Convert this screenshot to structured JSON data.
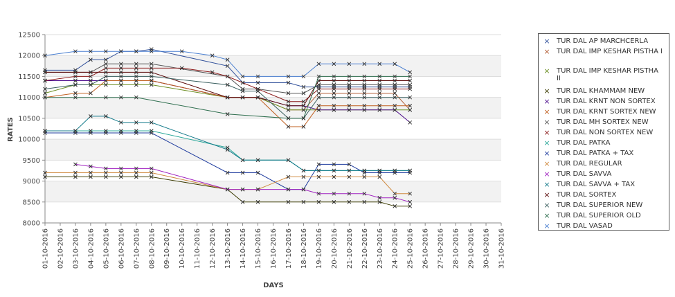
{
  "chart_data": {
    "type": "line",
    "xlabel": "DAYS",
    "ylabel": "RATES",
    "ylim": [
      8000,
      12500
    ],
    "yticks": [
      8000,
      8500,
      9000,
      9500,
      10000,
      10500,
      11000,
      11500,
      12000,
      12500
    ],
    "grid": "alternating horizontal bands",
    "legend_position": "right",
    "categories": [
      "01-10-2016",
      "02-10-2016",
      "03-10-2016",
      "04-10-2016",
      "05-10-2016",
      "06-10-2016",
      "07-10-2016",
      "08-10-2016",
      "09-10-2016",
      "10-10-2016",
      "11-10-2016",
      "12-10-2016",
      "13-10-2016",
      "14-10-2016",
      "15-10-2016",
      "16-10-2016",
      "17-10-2016",
      "18-10-2016",
      "19-10-2016",
      "20-10-2016",
      "21-10-2016",
      "22-10-2016",
      "23-10-2016",
      "24-10-2016",
      "25-10-2016",
      "26-10-2016",
      "27-10-2016",
      "28-10-2016",
      "29-10-2016",
      "30-10-2016",
      "31-10-2016"
    ],
    "series": [
      {
        "name": "TUR DAL AP MARCHCERLA",
        "color": "#2f4f9a",
        "values": [
          11650,
          null,
          11650,
          11900,
          11900,
          12100,
          12100,
          12150,
          null,
          null,
          null,
          null,
          11750,
          11350,
          11350,
          null,
          11350,
          11250,
          11250,
          11250,
          11250,
          11250,
          11250,
          11250,
          11250,
          null,
          null,
          null,
          null,
          null,
          null
        ]
      },
      {
        "name": "TUR DAL IMP KESHAR PISTHA I",
        "color": "#b05a30",
        "values": [
          11400,
          null,
          11400,
          11400,
          11400,
          11400,
          11400,
          11400,
          null,
          null,
          null,
          null,
          11000,
          11000,
          11000,
          null,
          10700,
          10700,
          11100,
          11100,
          11100,
          11100,
          11100,
          11100,
          10700,
          null,
          null,
          null,
          null,
          null,
          null
        ]
      },
      {
        "name": "TUR DAL IMP KESHAR PISTHA II",
        "color": "#6b8e23",
        "values": [
          11100,
          null,
          11300,
          11300,
          11300,
          11300,
          11300,
          11300,
          null,
          null,
          null,
          null,
          11000,
          11000,
          11000,
          null,
          10700,
          10700,
          10700,
          10700,
          10700,
          10700,
          10700,
          10700,
          10700,
          null,
          null,
          null,
          null,
          null,
          null
        ]
      },
      {
        "name": "TUR DAL KHAMMAM NEW",
        "color": "#3b3b00",
        "values": [
          9100,
          null,
          9100,
          9100,
          9100,
          9100,
          9100,
          9100,
          null,
          null,
          null,
          null,
          8800,
          8500,
          8500,
          null,
          8500,
          8500,
          8500,
          8500,
          8500,
          8500,
          8500,
          8400,
          8400,
          null,
          null,
          null,
          null,
          null,
          null
        ]
      },
      {
        "name": "TUR DAL KRNT NON SORTEX",
        "color": "#4b0a8c",
        "values": [
          11400,
          null,
          11400,
          11400,
          11400,
          11400,
          11400,
          11400,
          null,
          null,
          null,
          null,
          11000,
          11000,
          11000,
          null,
          10800,
          10800,
          10700,
          10700,
          10700,
          10700,
          10700,
          10700,
          10400,
          null,
          null,
          null,
          null,
          null,
          null
        ]
      },
      {
        "name": "TUR DAL KRNT SORTEX NEW",
        "color": "#c06020",
        "values": [
          11000,
          null,
          11100,
          11100,
          11400,
          11400,
          11400,
          11400,
          null,
          null,
          null,
          null,
          11000,
          11000,
          11000,
          null,
          10300,
          10300,
          10800,
          10800,
          10800,
          10800,
          10800,
          10800,
          10800,
          null,
          null,
          null,
          null,
          null,
          null
        ]
      },
      {
        "name": "TUR DAL MH SORTEX NEW",
        "color": "#555555",
        "values": [
          11600,
          null,
          11600,
          11600,
          11800,
          11800,
          11800,
          11800,
          null,
          null,
          null,
          null,
          11500,
          11200,
          11200,
          null,
          11100,
          11100,
          11300,
          11300,
          11300,
          11300,
          11300,
          11300,
          11300,
          null,
          null,
          null,
          null,
          null,
          null
        ]
      },
      {
        "name": "TUR DAL NON SORTEX NEW",
        "color": "#8b1a1a",
        "values": [
          11400,
          null,
          11500,
          11500,
          11700,
          11700,
          11700,
          11700,
          null,
          11700,
          null,
          11600,
          11500,
          11350,
          11200,
          null,
          10900,
          10900,
          11200,
          11200,
          11200,
          11200,
          11200,
          11200,
          11200,
          null,
          null,
          null,
          null,
          null,
          null
        ]
      },
      {
        "name": "TUR DAL PATKA",
        "color": "#2ba89a",
        "values": [
          10200,
          null,
          10200,
          10200,
          10200,
          10200,
          10200,
          10200,
          null,
          null,
          null,
          null,
          9800,
          9500,
          9500,
          null,
          9500,
          9250,
          9250,
          9250,
          9250,
          9250,
          9250,
          9250,
          9250,
          null,
          null,
          null,
          null,
          null,
          null
        ]
      },
      {
        "name": "TUR DAL PATKA + TAX",
        "color": "#1f3c9e",
        "values": [
          10150,
          null,
          10150,
          10150,
          10150,
          10150,
          10150,
          10150,
          null,
          null,
          null,
          null,
          9200,
          9200,
          9200,
          null,
          8800,
          8800,
          9400,
          9400,
          9400,
          9200,
          9200,
          9200,
          9200,
          null,
          null,
          null,
          null,
          null,
          null
        ]
      },
      {
        "name": "TUR DAL REGULAR",
        "color": "#d08a40",
        "values": [
          9200,
          null,
          9200,
          9200,
          9200,
          9200,
          9200,
          9200,
          null,
          null,
          null,
          null,
          8800,
          8800,
          8800,
          null,
          9100,
          9100,
          9100,
          9100,
          9100,
          9100,
          9100,
          8700,
          8700,
          null,
          null,
          null,
          null,
          null,
          null
        ]
      },
      {
        "name": "TUR DAL SAVVA",
        "color": "#a020c0",
        "values": [
          null,
          null,
          9400,
          9350,
          9300,
          9300,
          9300,
          9300,
          null,
          null,
          null,
          null,
          8800,
          8800,
          8800,
          null,
          8800,
          8800,
          8700,
          8700,
          8700,
          8700,
          8600,
          8600,
          8500,
          null,
          null,
          null,
          null,
          null,
          null
        ]
      },
      {
        "name": "TUR DAL SAVVA + TAX",
        "color": "#137a8a",
        "values": [
          10200,
          null,
          10200,
          10550,
          10550,
          10400,
          10400,
          10400,
          null,
          null,
          null,
          null,
          9750,
          9500,
          9500,
          null,
          9500,
          9250,
          9250,
          9250,
          9250,
          9250,
          9250,
          9250,
          9250,
          null,
          null,
          null,
          null,
          null,
          null
        ]
      },
      {
        "name": "TUR DAL SORTEX",
        "color": "#5a0a0a",
        "values": [
          11600,
          null,
          11600,
          11600,
          11600,
          11600,
          11600,
          11600,
          null,
          null,
          null,
          null,
          11000,
          11000,
          11000,
          null,
          10800,
          10800,
          11400,
          11400,
          11400,
          11400,
          11400,
          11400,
          11400,
          null,
          null,
          null,
          null,
          null,
          null
        ]
      },
      {
        "name": "TUR DAL SUPERIOR NEW",
        "color": "#3a5f5f",
        "values": [
          11200,
          null,
          11300,
          11300,
          11500,
          11500,
          11500,
          11500,
          null,
          null,
          null,
          null,
          11300,
          11150,
          11150,
          null,
          10500,
          10500,
          11000,
          11000,
          11000,
          11000,
          11000,
          11000,
          11000,
          null,
          null,
          null,
          null,
          null,
          null
        ]
      },
      {
        "name": "TUR DAL SUPERIOR OLD",
        "color": "#2e6e4e",
        "values": [
          11000,
          null,
          11000,
          null,
          11000,
          11000,
          11000,
          null,
          null,
          null,
          null,
          null,
          10600,
          null,
          null,
          null,
          10500,
          10500,
          11500,
          11500,
          11500,
          11500,
          11500,
          11500,
          11500,
          null,
          null,
          null,
          null,
          null,
          null
        ]
      },
      {
        "name": "TUR DAL VASAD",
        "color": "#4a7fd0",
        "values": [
          12000,
          null,
          12100,
          12100,
          12100,
          12100,
          12100,
          12100,
          null,
          12100,
          null,
          12000,
          11900,
          11500,
          11500,
          null,
          11500,
          11500,
          11800,
          11800,
          11800,
          11800,
          11800,
          11800,
          11600,
          null,
          null,
          null,
          null,
          null,
          null
        ]
      }
    ]
  }
}
